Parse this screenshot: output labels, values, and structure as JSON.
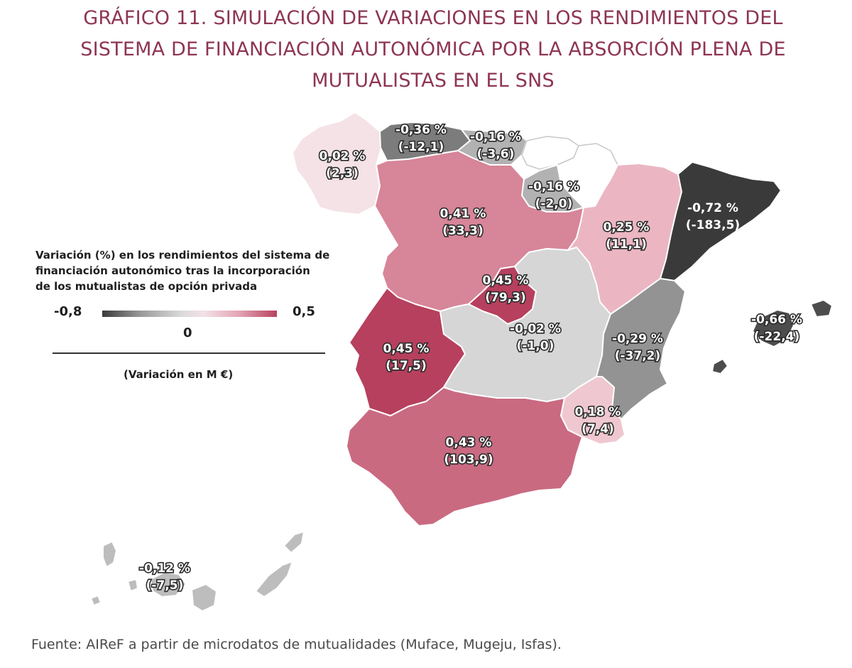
{
  "title": {
    "line1": "GRÁFICO 11.  SIMULACIÓN DE VARIACIONES EN LOS RENDIMIENTOS DEL",
    "line2": "SISTEMA DE FINANCIACIÓN AUTONÓMICA POR LA ABSORCIÓN PLENA DE",
    "line3": "MUTUALISTAS EN EL SNS"
  },
  "legend": {
    "title_line1": "Variación (%) en los rendimientos del sistema de",
    "title_line2": "financiación autonómico tras la incorporación",
    "title_line3": "de los mutualistas de opción privada",
    "min": "-0,8",
    "zero": "0",
    "max": "0,5",
    "note": "(Variación en M €)",
    "scale_colors": [
      "#3a3a3a",
      "#9a9a9a",
      "#d9d9d9",
      "#f3e1e6",
      "#e4a6b6",
      "#b8415f"
    ]
  },
  "regions": [
    {
      "id": "galicia",
      "pct": "0,02 %",
      "eur": "(2,3)",
      "pct_value": 0.02,
      "eur_value": 2.3,
      "color": "#f4e2e6"
    },
    {
      "id": "asturias",
      "pct": "-0,36 %",
      "eur": "(-12,1)",
      "pct_value": -0.36,
      "eur_value": -12.1,
      "color": "#7c7c7c"
    },
    {
      "id": "cantabria",
      "pct": "-0,16 %",
      "eur": "(-3,6)",
      "pct_value": -0.16,
      "eur_value": -3.6,
      "color": "#b2b2b2"
    },
    {
      "id": "la-rioja",
      "pct": "-0,16 %",
      "eur": "(-2,0)",
      "pct_value": -0.16,
      "eur_value": -2.0,
      "color": "#b2b2b2"
    },
    {
      "id": "castilla-y-leon",
      "pct": "0,41 %",
      "eur": "(33,3)",
      "pct_value": 0.41,
      "eur_value": 33.3,
      "color": "#d78598"
    },
    {
      "id": "aragon",
      "pct": "0,25 %",
      "eur": "(11,1)",
      "pct_value": 0.25,
      "eur_value": 11.1,
      "color": "#ebb6c2"
    },
    {
      "id": "cataluna",
      "pct": "-0,72 %",
      "eur": "(-183,5)",
      "pct_value": -0.72,
      "eur_value": -183.5,
      "color": "#3a3a3a"
    },
    {
      "id": "madrid",
      "pct": "0,45 %",
      "eur": "(79,3)",
      "pct_value": 0.45,
      "eur_value": 79.3,
      "color": "#b6405d"
    },
    {
      "id": "extremadura",
      "pct": "0,45 %",
      "eur": "(17,5)",
      "pct_value": 0.45,
      "eur_value": 17.5,
      "color": "#b6405d"
    },
    {
      "id": "castilla-la-mancha",
      "pct": "-0,02 %",
      "eur": "(-1,0)",
      "pct_value": -0.02,
      "eur_value": -1.0,
      "color": "#d6d6d6"
    },
    {
      "id": "comunitat-valenciana",
      "pct": "-0,29 %",
      "eur": "(-37,2)",
      "pct_value": -0.29,
      "eur_value": -37.2,
      "color": "#939393"
    },
    {
      "id": "murcia",
      "pct": "0,18 %",
      "eur": "(7,4)",
      "pct_value": 0.18,
      "eur_value": 7.4,
      "color": "#efc7d0"
    },
    {
      "id": "andalucia",
      "pct": "0,43 %",
      "eur": "(103,9)",
      "pct_value": 0.43,
      "eur_value": 103.9,
      "color": "#c96a81"
    },
    {
      "id": "illes-balears",
      "pct": "-0,66 %",
      "eur": "(-22,4)",
      "pct_value": -0.66,
      "eur_value": -22.4,
      "color": "#4d4d4d"
    },
    {
      "id": "canarias",
      "pct": "-0,12 %",
      "eur": "(-7,5)",
      "pct_value": -0.12,
      "eur_value": -7.5,
      "color": "#bdbdbd"
    }
  ],
  "unlabeled_regions": [
    {
      "id": "pais-vasco",
      "color": "#ffffff"
    },
    {
      "id": "navarra",
      "color": "#ffffff"
    }
  ],
  "source": "Fuente: AIReF a partir de microdatos de mutualidades (Muface, Mugeju, Isfas)."
}
